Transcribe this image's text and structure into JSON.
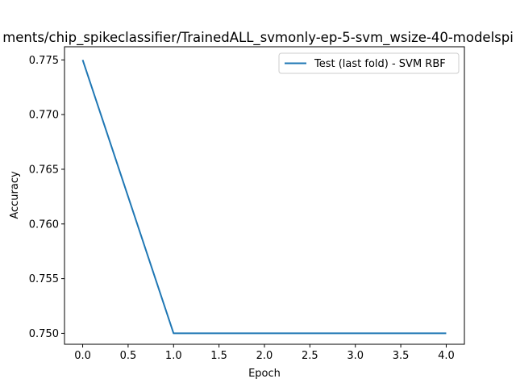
{
  "chart_data": {
    "type": "line",
    "title": "ments/chip_spikeclassifier/TrainedALL_svmonly-ep-5-svm_wsize-40-modelspi",
    "xlabel": "Epoch",
    "ylabel": "Accuracy",
    "xlim": [
      -0.2,
      4.2
    ],
    "ylim": [
      0.749,
      0.7762
    ],
    "x_ticks": [
      0.0,
      0.5,
      1.0,
      1.5,
      2.0,
      2.5,
      3.0,
      3.5,
      4.0
    ],
    "x_tick_labels": [
      "0.0",
      "0.5",
      "1.0",
      "1.5",
      "2.0",
      "2.5",
      "3.0",
      "3.5",
      "4.0"
    ],
    "y_ticks": [
      0.75,
      0.755,
      0.76,
      0.765,
      0.77,
      0.775
    ],
    "y_tick_labels": [
      "0.750",
      "0.755",
      "0.760",
      "0.765",
      "0.770",
      "0.775"
    ],
    "grid": false,
    "legend_position": "top-right",
    "series": [
      {
        "name": "Test (last fold) - SVM RBF",
        "color": "#1f77b4",
        "x": [
          0,
          1,
          2,
          3,
          4
        ],
        "y": [
          0.775,
          0.75,
          0.75,
          0.75,
          0.75
        ]
      }
    ]
  }
}
